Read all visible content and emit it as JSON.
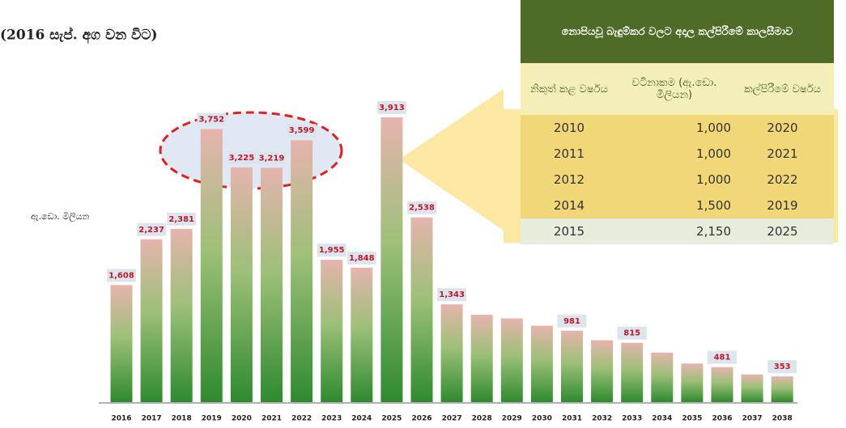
{
  "chart_data": {
    "type": "bar",
    "title": "(2016 සැප්. අග වන විට)",
    "ylabel": "ඇ.ඩො. මිලියන",
    "categories": [
      "2016",
      "2017",
      "2018",
      "2019",
      "2020",
      "2021",
      "2022",
      "2023",
      "2024",
      "2025",
      "2026",
      "2027",
      "2028",
      "2029",
      "2030",
      "2031",
      "2032",
      "2033",
      "2034",
      "2035",
      "2036",
      "2037",
      "2038"
    ],
    "values": [
      1608,
      2237,
      2381,
      3752,
      3225,
      3219,
      3599,
      1955,
      1848,
      3913,
      2538,
      1343,
      1200,
      1150,
      1050,
      981,
      850,
      815,
      680,
      530,
      481,
      380,
      353
    ],
    "value_labels": [
      "1,608",
      "2,237",
      "2,381",
      "3,752",
      "3,225",
      "3,219",
      "3,599",
      "1,955",
      "1,848",
      "3,913",
      "2,538",
      "1,343",
      null,
      null,
      null,
      "981",
      null,
      "815",
      null,
      null,
      "481",
      null,
      "353"
    ],
    "color": "#2f8a2f"
  },
  "table": {
    "title": "නොපියවූ බැඳුම්කර වලට අදාල කල්පිරීමේ කාලසීමාව",
    "headers": [
      "නිකුත් කළ වර්ෂය",
      "වටිනාකම (ඇ.ඩො. මිලියන)",
      "කල්පිරීමේ වර්ෂය"
    ],
    "rows": [
      [
        "2010",
        "1,000",
        "2020"
      ],
      [
        "2011",
        "1,000",
        "2021"
      ],
      [
        "2012",
        "1,000",
        "2022"
      ],
      [
        "2014",
        "1,500",
        "2019"
      ],
      [
        "2015",
        "2,150",
        "2025"
      ]
    ]
  }
}
